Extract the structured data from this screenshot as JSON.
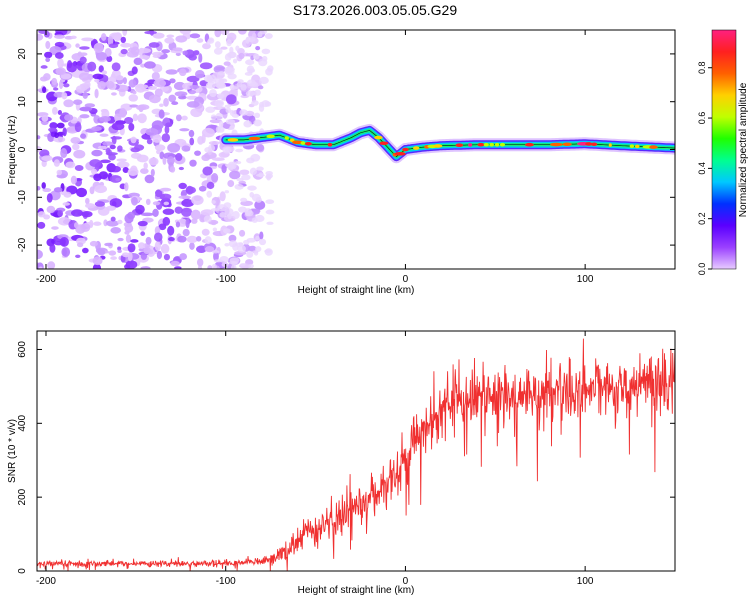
{
  "chart_data": [
    {
      "type": "heatmap",
      "title": "S173.2026.003.05.05.G29",
      "xlabel": "Height of straight line (km)",
      "ylabel": "Frequency (Hz)",
      "xlim": [
        -205,
        150
      ],
      "ylim": [
        -25,
        25
      ],
      "xticks": [
        -200,
        -100,
        0,
        100
      ],
      "xtick_labels": [
        "-200",
        "-100",
        "0",
        "100"
      ],
      "yticks": [
        -20,
        -10,
        0,
        10,
        20
      ],
      "ytick_labels": [
        "-20",
        "-10",
        "0",
        "10",
        "20"
      ],
      "colorbar": {
        "label": "Normalized spectral amplitude",
        "range": [
          0,
          0.95
        ],
        "ticks": [
          0,
          0.2,
          0.4,
          0.6,
          0.8
        ],
        "tick_labels": [
          "0.0",
          "0.2",
          "0.4",
          "0.6",
          "0.8"
        ],
        "colors": [
          "#e8ccff",
          "#9a40ff",
          "#5a00ff",
          "#0030ff",
          "#00c8ff",
          "#00ff90",
          "#20ff00",
          "#c0ff00",
          "#ffd000",
          "#ff6000",
          "#ff2020",
          "#ff2080"
        ]
      },
      "signal_track": {
        "height_km": [
          -100,
          -90,
          -80,
          -70,
          -60,
          -50,
          -40,
          -30,
          -25,
          -20,
          -15,
          -10,
          -5,
          0,
          10,
          20,
          40,
          60,
          80,
          100,
          120,
          150
        ],
        "frequency_hz": [
          2.0,
          2.0,
          2.5,
          3.0,
          1.5,
          1.0,
          1.0,
          2.5,
          3.5,
          4.0,
          2.5,
          0.5,
          -1.5,
          0.0,
          0.5,
          0.8,
          1.0,
          1.0,
          1.0,
          1.2,
          0.8,
          0.3
        ]
      },
      "noise_region_km": [
        -205,
        -80
      ]
    },
    {
      "type": "line",
      "xlabel": "Height of straight line (km)",
      "ylabel": "SNR (10 * v/v)",
      "xlim": [
        -205,
        150
      ],
      "ylim": [
        0,
        650
      ],
      "xticks": [
        -200,
        -100,
        0,
        100
      ],
      "xtick_labels": [
        "-200",
        "-100",
        "0",
        "100"
      ],
      "yticks": [
        0,
        200,
        400,
        600
      ],
      "ytick_labels": [
        "0",
        "200",
        "400",
        "600"
      ],
      "series": [
        {
          "name": "SNR",
          "color": "#f03030",
          "x": [
            -205,
            -180,
            -150,
            -120,
            -90,
            -75,
            -65,
            -55,
            -45,
            -35,
            -25,
            -15,
            -5,
            0,
            5,
            15,
            25,
            40,
            60,
            80,
            100,
            120,
            150
          ],
          "y": [
            20,
            20,
            20,
            20,
            22,
            30,
            60,
            100,
            120,
            150,
            180,
            220,
            260,
            310,
            360,
            410,
            450,
            470,
            480,
            490,
            500,
            500,
            510
          ],
          "noise": [
            8,
            8,
            8,
            8,
            8,
            12,
            30,
            40,
            45,
            50,
            55,
            60,
            65,
            70,
            70,
            70,
            70,
            70,
            70,
            70,
            70,
            70,
            70
          ]
        }
      ]
    }
  ]
}
